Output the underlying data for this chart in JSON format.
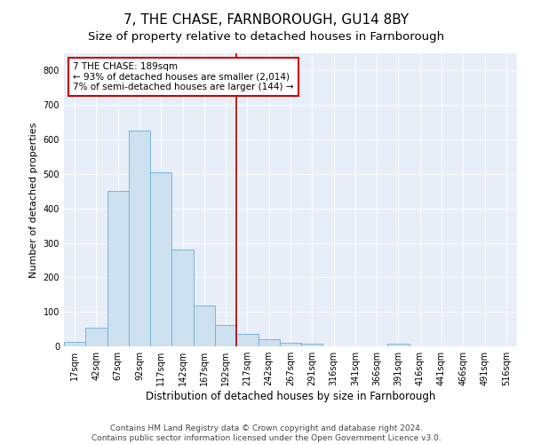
{
  "title": "7, THE CHASE, FARNBOROUGH, GU14 8BY",
  "subtitle": "Size of property relative to detached houses in Farnborough",
  "xlabel": "Distribution of detached houses by size in Farnborough",
  "ylabel": "Number of detached properties",
  "bar_labels": [
    "17sqm",
    "42sqm",
    "67sqm",
    "92sqm",
    "117sqm",
    "142sqm",
    "167sqm",
    "192sqm",
    "217sqm",
    "242sqm",
    "267sqm",
    "291sqm",
    "316sqm",
    "341sqm",
    "366sqm",
    "391sqm",
    "416sqm",
    "441sqm",
    "466sqm",
    "491sqm",
    "516sqm"
  ],
  "bar_values": [
    13,
    55,
    450,
    625,
    505,
    280,
    118,
    62,
    35,
    20,
    10,
    8,
    0,
    0,
    0,
    8,
    0,
    0,
    0,
    0,
    0
  ],
  "bar_color": "#cce0f0",
  "bar_edge_color": "#6aafd6",
  "background_color": "#e8eef8",
  "vline_x": 7.5,
  "vline_color": "#aa0000",
  "annotation_line1": "7 THE CHASE: 189sqm",
  "annotation_line2": "← 93% of detached houses are smaller (2,014)",
  "annotation_line3": "7% of semi-detached houses are larger (144) →",
  "annotation_box_color": "#ffffff",
  "annotation_box_edge_color": "#cc0000",
  "ylim": [
    0,
    850
  ],
  "yticks": [
    0,
    100,
    200,
    300,
    400,
    500,
    600,
    700,
    800
  ],
  "footer_line1": "Contains HM Land Registry data © Crown copyright and database right 2024.",
  "footer_line2": "Contains public sector information licensed under the Open Government Licence v3.0.",
  "title_fontsize": 11,
  "subtitle_fontsize": 9.5,
  "xlabel_fontsize": 8.5,
  "ylabel_fontsize": 8,
  "tick_fontsize": 7,
  "annotation_fontsize": 7.5,
  "footer_fontsize": 6.5
}
